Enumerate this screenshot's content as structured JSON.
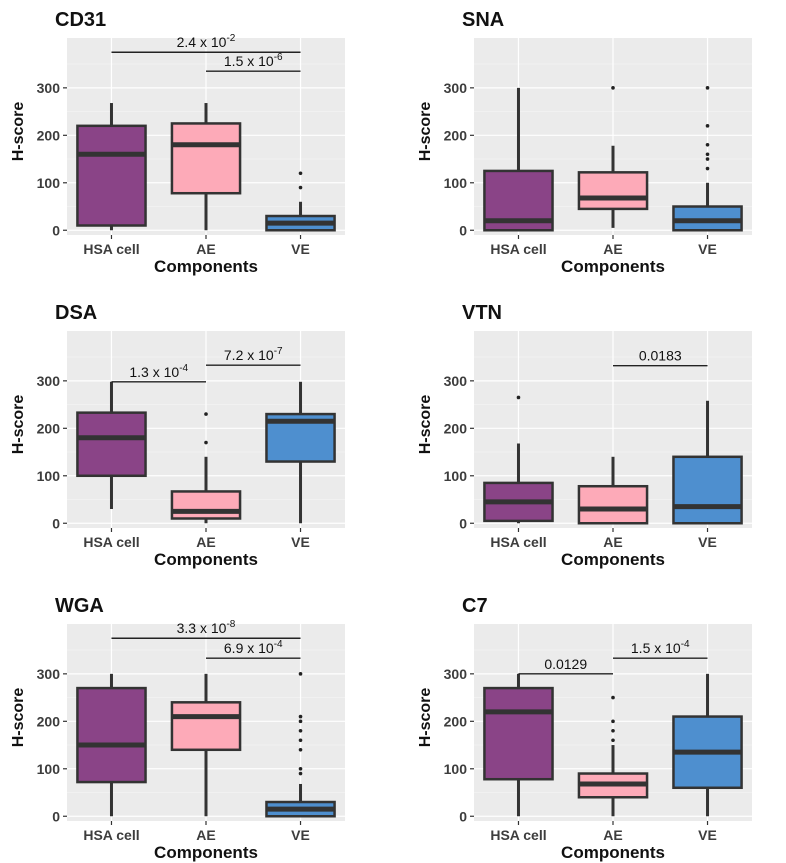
{
  "figure": {
    "shared": {
      "xlabel": "Components",
      "ylabel": "H-score",
      "categories": [
        "HSA cell",
        "AE",
        "VE"
      ],
      "ylim": [
        -10,
        405
      ],
      "yticks": [
        0,
        100,
        200,
        300
      ],
      "colors": {
        "HSA cell": "#8a4487",
        "AE": "#fdaab8",
        "VE": "#4e8fcf"
      },
      "panel_background": "#ebebeb",
      "grid": true
    }
  },
  "chart_data": [
    {
      "type": "box",
      "title": "CD31",
      "xlabel": "Components",
      "ylabel": "H-score",
      "categories": [
        "HSA cell",
        "AE",
        "VE"
      ],
      "ylim": [
        -10,
        405
      ],
      "boxes": [
        {
          "category": "HSA cell",
          "min": 0,
          "q1": 10,
          "median": 160,
          "q3": 220,
          "max": 268,
          "outliers": []
        },
        {
          "category": "AE",
          "min": 0,
          "q1": 78,
          "median": 180,
          "q3": 225,
          "max": 268,
          "outliers": []
        },
        {
          "category": "VE",
          "min": 0,
          "q1": 0,
          "median": 15,
          "q3": 30,
          "max": 60,
          "outliers": [
            90,
            120
          ]
        }
      ],
      "significance": [
        {
          "from": "HSA cell",
          "to": "VE",
          "label": "2.4 x 10",
          "exponent": "-2",
          "y": 375
        },
        {
          "from": "AE",
          "to": "VE",
          "label": "1.5 x 10",
          "exponent": "-6",
          "y": 335
        }
      ]
    },
    {
      "type": "box",
      "title": "SNA",
      "xlabel": "Components",
      "ylabel": "H-score",
      "categories": [
        "HSA cell",
        "AE",
        "VE"
      ],
      "ylim": [
        -10,
        405
      ],
      "boxes": [
        {
          "category": "HSA cell",
          "min": 0,
          "q1": 0,
          "median": 20,
          "q3": 125,
          "max": 300,
          "outliers": []
        },
        {
          "category": "AE",
          "min": 5,
          "q1": 45,
          "median": 68,
          "q3": 122,
          "max": 178,
          "outliers": [
            300
          ]
        },
        {
          "category": "VE",
          "min": 0,
          "q1": 0,
          "median": 20,
          "q3": 50,
          "max": 100,
          "outliers": [
            130,
            150,
            160,
            180,
            220,
            300
          ]
        }
      ],
      "significance": []
    },
    {
      "type": "box",
      "title": "DSA",
      "xlabel": "Components",
      "ylabel": "H-score",
      "categories": [
        "HSA cell",
        "AE",
        "VE"
      ],
      "ylim": [
        -10,
        405
      ],
      "boxes": [
        {
          "category": "HSA cell",
          "min": 30,
          "q1": 100,
          "median": 180,
          "q3": 233,
          "max": 298,
          "outliers": []
        },
        {
          "category": "AE",
          "min": 0,
          "q1": 10,
          "median": 25,
          "q3": 67,
          "max": 140,
          "outliers": [
            170,
            230
          ]
        },
        {
          "category": "VE",
          "min": 0,
          "q1": 130,
          "median": 215,
          "q3": 230,
          "max": 298,
          "outliers": []
        }
      ],
      "significance": [
        {
          "from": "HSA cell",
          "to": "AE",
          "label": "1.3 x 10",
          "exponent": "-4",
          "y": 298
        },
        {
          "from": "AE",
          "to": "VE",
          "label": "7.2 x 10",
          "exponent": "-7",
          "y": 333
        }
      ]
    },
    {
      "type": "box",
      "title": "VTN",
      "xlabel": "Components",
      "ylabel": "H-score",
      "categories": [
        "HSA cell",
        "AE",
        "VE"
      ],
      "ylim": [
        -10,
        405
      ],
      "boxes": [
        {
          "category": "HSA cell",
          "min": 0,
          "q1": 5,
          "median": 45,
          "q3": 85,
          "max": 168,
          "outliers": [
            265
          ]
        },
        {
          "category": "AE",
          "min": 0,
          "q1": 0,
          "median": 30,
          "q3": 78,
          "max": 140,
          "outliers": []
        },
        {
          "category": "VE",
          "min": 0,
          "q1": 0,
          "median": 35,
          "q3": 140,
          "max": 258,
          "outliers": []
        }
      ],
      "significance": [
        {
          "from": "AE",
          "to": "VE",
          "label": "0.0183",
          "exponent": "",
          "y": 332
        }
      ]
    },
    {
      "type": "box",
      "title": "WGA",
      "xlabel": "Components",
      "ylabel": "H-score",
      "categories": [
        "HSA cell",
        "AE",
        "VE"
      ],
      "ylim": [
        -10,
        405
      ],
      "boxes": [
        {
          "category": "HSA cell",
          "min": 0,
          "q1": 72,
          "median": 150,
          "q3": 270,
          "max": 300,
          "outliers": []
        },
        {
          "category": "AE",
          "min": 0,
          "q1": 140,
          "median": 210,
          "q3": 240,
          "max": 300,
          "outliers": []
        },
        {
          "category": "VE",
          "min": 0,
          "q1": 0,
          "median": 15,
          "q3": 30,
          "max": 68,
          "outliers": [
            90,
            100,
            140,
            160,
            180,
            200,
            210,
            300
          ]
        }
      ],
      "significance": [
        {
          "from": "HSA cell",
          "to": "VE",
          "label": "3.3 x 10",
          "exponent": "-8",
          "y": 375
        },
        {
          "from": "AE",
          "to": "VE",
          "label": "6.9 x 10",
          "exponent": "-4",
          "y": 333
        }
      ]
    },
    {
      "type": "box",
      "title": "C7",
      "xlabel": "Components",
      "ylabel": "H-score",
      "categories": [
        "HSA cell",
        "AE",
        "VE"
      ],
      "ylim": [
        -10,
        405
      ],
      "boxes": [
        {
          "category": "HSA cell",
          "min": 0,
          "q1": 78,
          "median": 220,
          "q3": 270,
          "max": 300,
          "outliers": []
        },
        {
          "category": "AE",
          "min": 0,
          "q1": 40,
          "median": 68,
          "q3": 90,
          "max": 150,
          "outliers": [
            160,
            180,
            200,
            250
          ]
        },
        {
          "category": "VE",
          "min": 0,
          "q1": 60,
          "median": 135,
          "q3": 210,
          "max": 300,
          "outliers": []
        }
      ],
      "significance": [
        {
          "from": "HSA cell",
          "to": "AE",
          "label": "0.0129",
          "exponent": "",
          "y": 300
        },
        {
          "from": "AE",
          "to": "VE",
          "label": "1.5 x 10",
          "exponent": "-4",
          "y": 333
        }
      ]
    }
  ]
}
